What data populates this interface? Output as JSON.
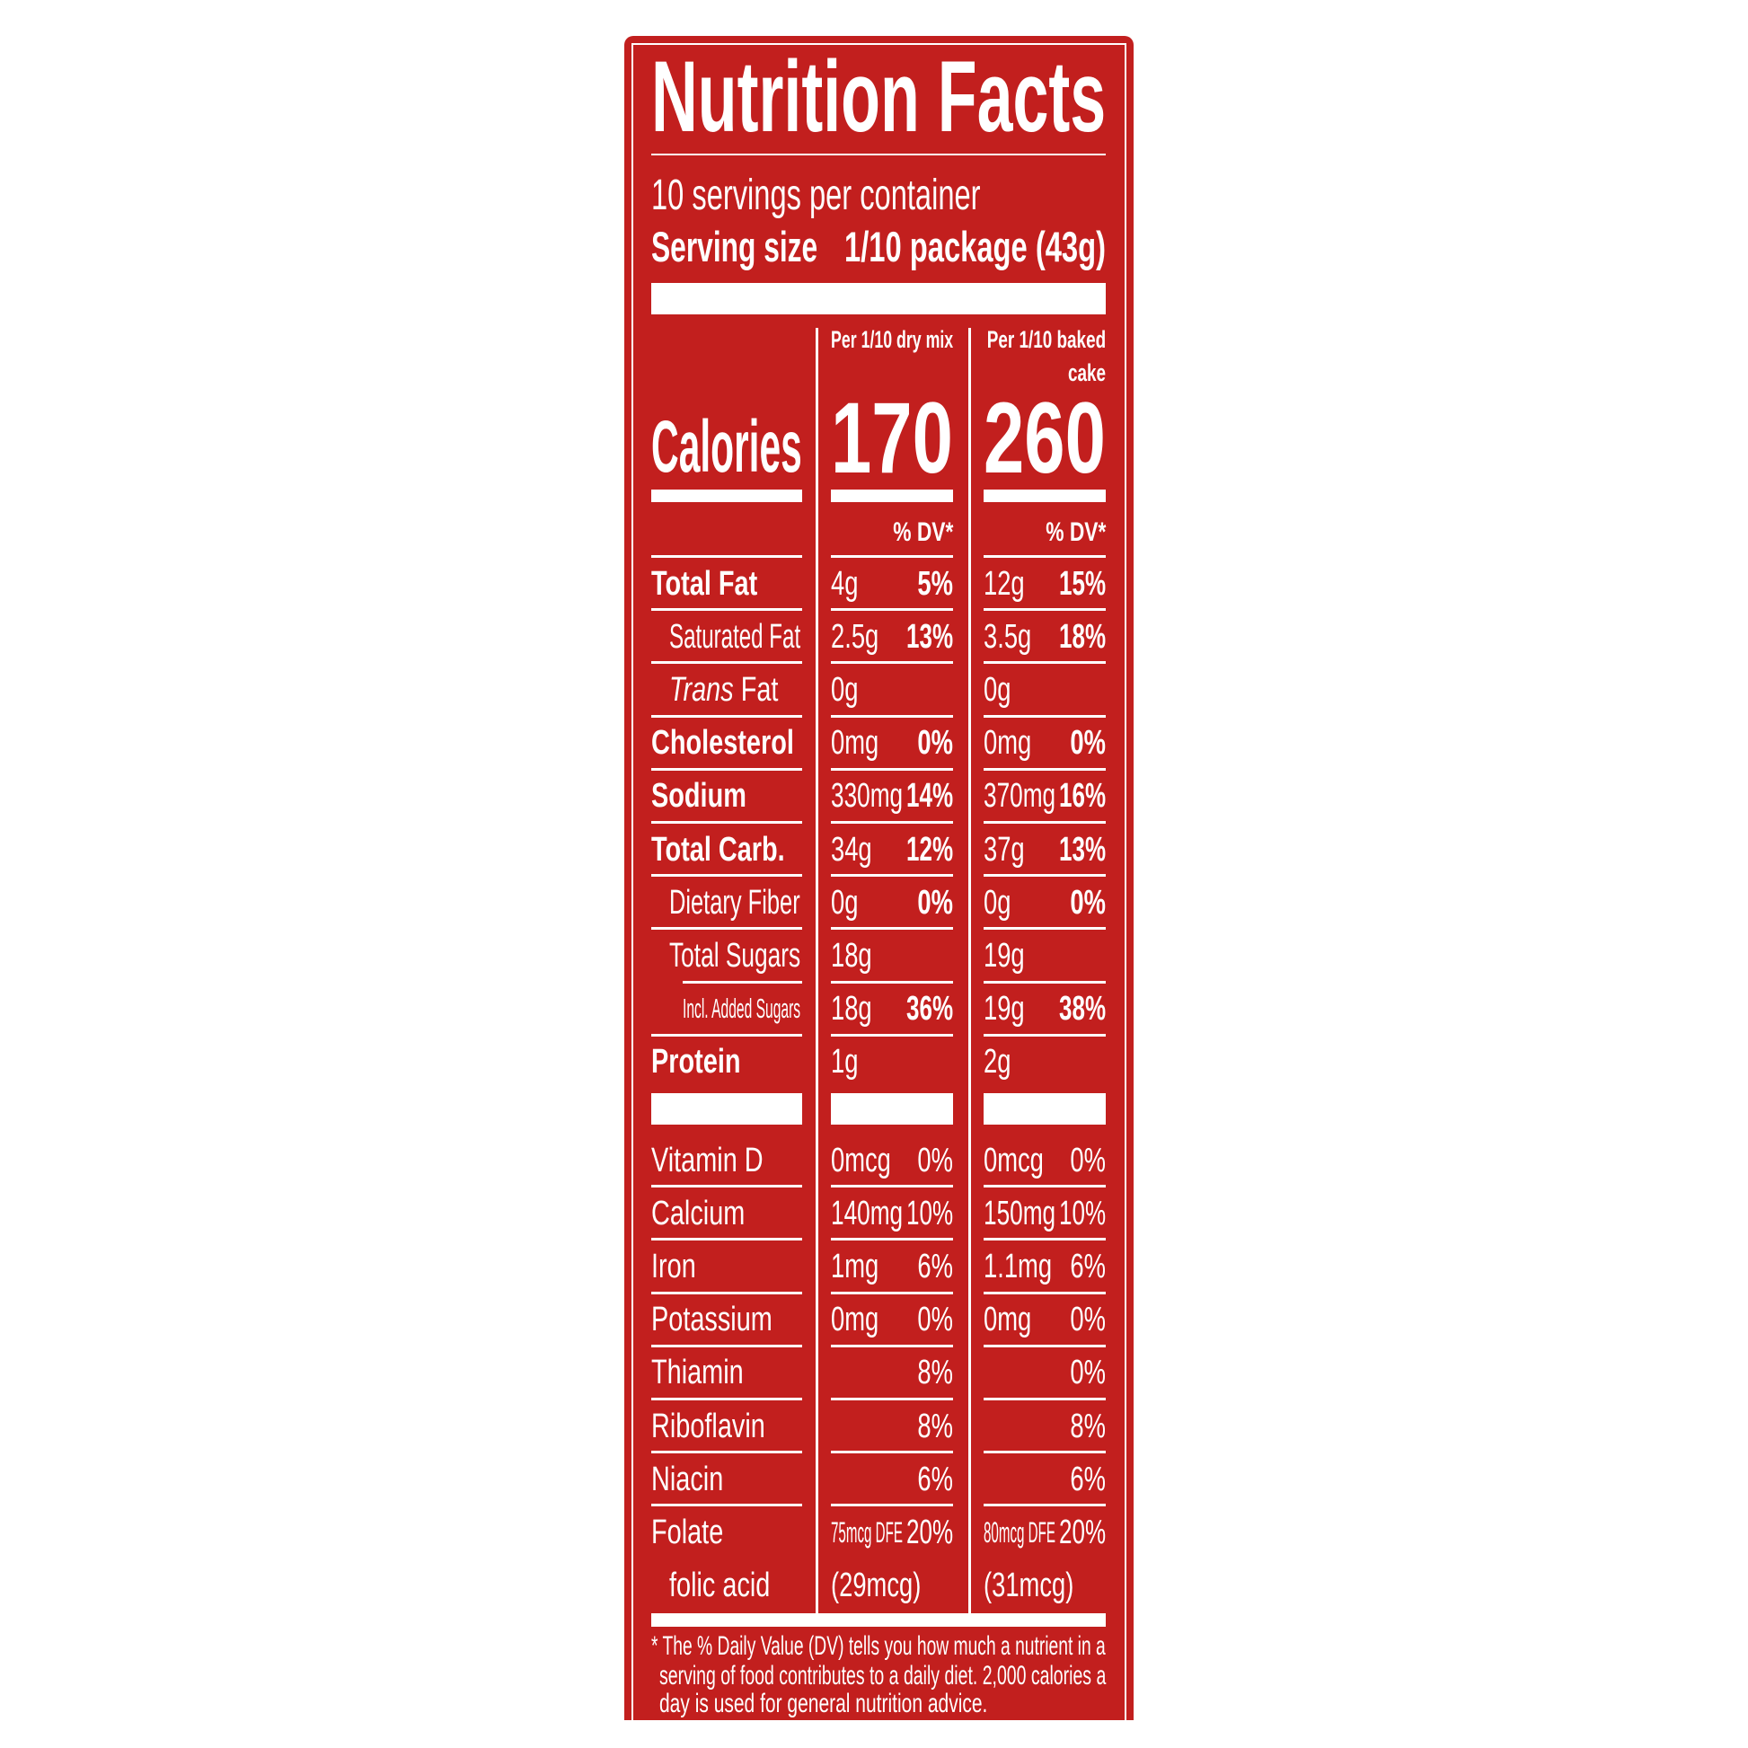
{
  "title": "Nutrition Facts",
  "servings_per_container": "10 servings per container",
  "serving_size_label": "Serving size",
  "serving_size_value": "1/10 package (43g)",
  "columns": [
    {
      "header_line1": "Per 1/10 dry mix",
      "header_line2": "",
      "calories": "170",
      "dv_label": "% DV*"
    },
    {
      "header_line1": "Per 1/10 baked",
      "header_line2": "cake",
      "calories": "260",
      "dv_label": "% DV*"
    }
  ],
  "calories_label": "Calories",
  "nutrients": [
    {
      "label": "Total Fat",
      "bold": true,
      "indent": 0,
      "values": [
        [
          "4g",
          "5%"
        ],
        [
          "12g",
          "15%"
        ]
      ]
    },
    {
      "label": "Saturated Fat",
      "bold": false,
      "indent": 1,
      "values": [
        [
          "2.5g",
          "13%"
        ],
        [
          "3.5g",
          "18%"
        ]
      ]
    },
    {
      "label": "Trans Fat",
      "italic_prefix": "Trans",
      "bold": false,
      "indent": 1,
      "values": [
        [
          "0g",
          ""
        ],
        [
          "0g",
          ""
        ]
      ]
    },
    {
      "label": "Cholesterol",
      "bold": true,
      "indent": 0,
      "values": [
        [
          "0mg",
          "0%"
        ],
        [
          "0mg",
          "0%"
        ]
      ]
    },
    {
      "label": "Sodium",
      "bold": true,
      "indent": 0,
      "values": [
        [
          "330mg",
          "14%"
        ],
        [
          "370mg",
          "16%"
        ]
      ]
    },
    {
      "label": "Total Carb.",
      "bold": true,
      "indent": 0,
      "values": [
        [
          "34g",
          "12%"
        ],
        [
          "37g",
          "13%"
        ]
      ]
    },
    {
      "label": "Dietary Fiber",
      "bold": false,
      "indent": 1,
      "values": [
        [
          "0g",
          "0%"
        ],
        [
          "0g",
          "0%"
        ]
      ]
    },
    {
      "label": "Total Sugars",
      "bold": false,
      "indent": 1,
      "values": [
        [
          "18g",
          ""
        ],
        [
          "19g",
          ""
        ]
      ]
    },
    {
      "label": "Incl. Added Sugars",
      "bold": false,
      "indent": 2,
      "values": [
        [
          "18g",
          "36%"
        ],
        [
          "19g",
          "38%"
        ]
      ]
    },
    {
      "label": "Protein",
      "bold": true,
      "indent": 0,
      "values": [
        [
          "1g",
          ""
        ],
        [
          "2g",
          ""
        ]
      ]
    }
  ],
  "vitamins": [
    {
      "label": "Vitamin D",
      "values": [
        [
          "0mcg",
          "0%"
        ],
        [
          "0mcg",
          "0%"
        ]
      ]
    },
    {
      "label": "Calcium",
      "values": [
        [
          "140mg",
          "10%"
        ],
        [
          "150mg",
          "10%"
        ]
      ]
    },
    {
      "label": "Iron",
      "values": [
        [
          "1mg",
          "6%"
        ],
        [
          "1.1mg",
          "6%"
        ]
      ]
    },
    {
      "label": "Potassium",
      "values": [
        [
          "0mg",
          "0%"
        ],
        [
          "0mg",
          "0%"
        ]
      ]
    },
    {
      "label": "Thiamin",
      "values": [
        [
          "",
          "8%"
        ],
        [
          "",
          "0%"
        ]
      ]
    },
    {
      "label": "Riboflavin",
      "values": [
        [
          "",
          "8%"
        ],
        [
          "",
          "8%"
        ]
      ]
    },
    {
      "label": "Niacin",
      "values": [
        [
          "",
          "6%"
        ],
        [
          "",
          "6%"
        ]
      ]
    },
    {
      "label": "Folate",
      "values": [
        [
          "75mcg DFE",
          "20%"
        ],
        [
          "80mcg DFE",
          "20%"
        ]
      ]
    },
    {
      "label": "folic acid",
      "indent": 1,
      "values": [
        [
          "(29mcg)",
          ""
        ],
        [
          "(31mcg)",
          ""
        ]
      ]
    }
  ],
  "footnote": "* The % Daily Value (DV) tells you how much a nutrient in a serving of food contributes to a daily diet. 2,000 calories a day is used for general nutrition advice.",
  "footnote_lines": [
    "* The % Daily Value (DV) tells you how much a nutrient in a",
    "serving of food contributes to a daily diet. 2,000 calories a",
    "day is used for general nutrition advice."
  ],
  "colors": {
    "panel": "#c21f1e",
    "text": "#ffffff"
  }
}
